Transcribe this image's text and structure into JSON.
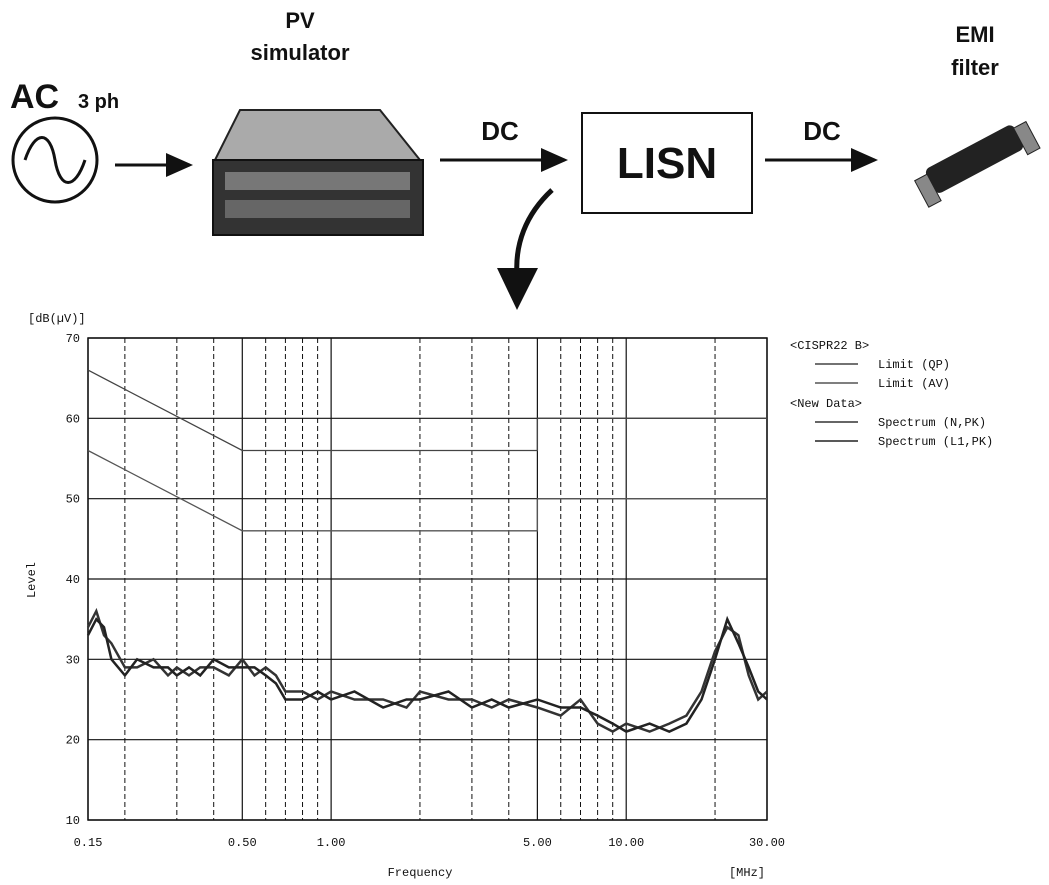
{
  "nodes": [
    {
      "label": "AC",
      "sublabel": "3 ph"
    },
    {
      "label": "PV",
      "sublabel": "simulator"
    },
    {
      "label": "LISN"
    },
    {
      "label": "EMI",
      "sublabel": "filter"
    }
  ],
  "edges": [
    {
      "label": "DC"
    },
    {
      "label": "DC"
    }
  ],
  "chart_data": {
    "type": "line",
    "y_unit": "[dB(µV)]",
    "ylabel": "Level",
    "xlabel": "Frequency",
    "x_unit": "[MHz]",
    "x_log": true,
    "xlim": [
      0.15,
      30
    ],
    "ylim": [
      10,
      70
    ],
    "xticks": [
      0.15,
      {
        "value": 0.5,
        "label": "0.50"
      },
      {
        "value": 1,
        "label": "1.00"
      },
      {
        "value": 5,
        "label": "5.00"
      },
      {
        "value": 10,
        "label": "10.00"
      },
      {
        "value": 30,
        "label": "30.00"
      }
    ],
    "minor_xticks": [
      0.2,
      0.3,
      0.4,
      0.6,
      0.7,
      0.8,
      0.9,
      2,
      3,
      4,
      6,
      7,
      8,
      9,
      20
    ],
    "yticks": [
      10,
      20,
      30,
      40,
      50,
      60,
      70
    ],
    "grid": true,
    "legend_headings": [
      "<CISPR22 B>",
      "<New Data>"
    ],
    "series": [
      {
        "name": "Limit (QP)",
        "color": "#444444",
        "x": [
          0.15,
          0.5,
          5,
          5,
          30
        ],
        "values": [
          66,
          56,
          56,
          60,
          60
        ]
      },
      {
        "name": "Limit (AV)",
        "color": "#555555",
        "x": [
          0.15,
          0.5,
          5,
          5,
          30
        ],
        "values": [
          56,
          46,
          46,
          50,
          50
        ]
      },
      {
        "name": "Spectrum (N,PK)",
        "color": "#333333",
        "x": [
          0.15,
          0.16,
          0.17,
          0.18,
          0.2,
          0.22,
          0.25,
          0.28,
          0.3,
          0.33,
          0.36,
          0.4,
          0.45,
          0.5,
          0.55,
          0.6,
          0.65,
          0.7,
          0.8,
          0.9,
          1,
          1.2,
          1.5,
          1.8,
          2,
          2.5,
          3,
          3.5,
          4,
          5,
          6,
          7,
          8,
          9,
          10,
          12,
          14,
          16,
          18,
          20,
          22,
          24,
          26,
          28,
          30
        ],
        "values": [
          34,
          36,
          33,
          32,
          29,
          29,
          30,
          28,
          29,
          28,
          29,
          29,
          28,
          30,
          28,
          29,
          28,
          26,
          26,
          25,
          26,
          25,
          25,
          24,
          26,
          25,
          25,
          24,
          25,
          24,
          23,
          25,
          22,
          21,
          22,
          21,
          22,
          23,
          26,
          31,
          34,
          33,
          28,
          25,
          26
        ]
      },
      {
        "name": "Spectrum (L1,PK)",
        "color": "#222222",
        "x": [
          0.15,
          0.16,
          0.17,
          0.18,
          0.2,
          0.22,
          0.25,
          0.28,
          0.3,
          0.33,
          0.36,
          0.4,
          0.45,
          0.5,
          0.55,
          0.6,
          0.65,
          0.7,
          0.8,
          0.9,
          1,
          1.2,
          1.5,
          1.8,
          2,
          2.5,
          3,
          3.5,
          4,
          5,
          6,
          7,
          8,
          9,
          10,
          12,
          14,
          16,
          18,
          20,
          22,
          24,
          26,
          28,
          30
        ],
        "values": [
          33,
          35,
          34,
          30,
          28,
          30,
          29,
          29,
          28,
          29,
          28,
          30,
          29,
          29,
          29,
          28,
          27,
          25,
          25,
          26,
          25,
          26,
          24,
          25,
          25,
          26,
          24,
          25,
          24,
          25,
          24,
          24,
          23,
          22,
          21,
          22,
          21,
          22,
          25,
          30,
          35,
          32,
          29,
          26,
          25
        ]
      }
    ]
  }
}
